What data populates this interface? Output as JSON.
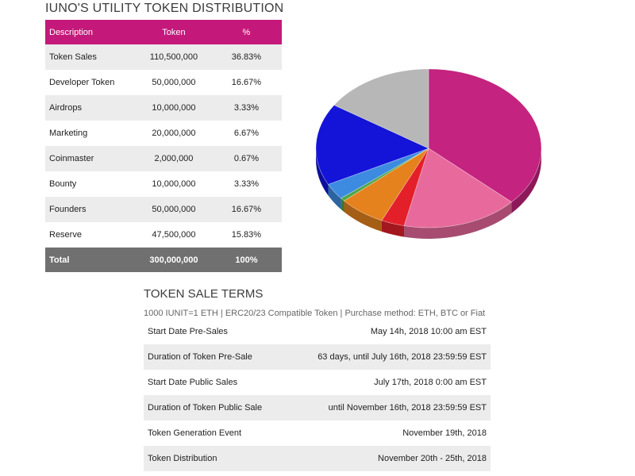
{
  "distribution": {
    "title": "IUNO'S UTILITY TOKEN DISTRIBUTION",
    "headers": [
      "Description",
      "Token",
      "%"
    ],
    "rows": [
      [
        "Token Sales",
        "110,500,000",
        "36.83%"
      ],
      [
        "Developer Token",
        "50,000,000",
        "16.67%"
      ],
      [
        "Airdrops",
        "10,000,000",
        "3.33%"
      ],
      [
        "Marketing",
        "20,000,000",
        "6.67%"
      ],
      [
        "Coinmaster",
        "2,000,000",
        "0.67%"
      ],
      [
        "Bounty",
        "10,000,000",
        "3.33%"
      ],
      [
        "Founders",
        "50,000,000",
        "16.67%"
      ],
      [
        "Reserve",
        "47,500,000",
        "15.83%"
      ]
    ],
    "total": [
      "Total",
      "300,000,000",
      "100%"
    ]
  },
  "chart_data": {
    "type": "pie",
    "title": "",
    "categories": [
      "Token Sales",
      "Developer Token",
      "Airdrops",
      "Marketing",
      "Coinmaster",
      "Bounty",
      "Founders",
      "Reserve"
    ],
    "values": [
      36.83,
      16.67,
      3.33,
      6.67,
      0.67,
      3.33,
      16.67,
      15.83
    ],
    "colors": [
      "#c4237f",
      "#e86a9c",
      "#e3202a",
      "#e5821d",
      "#4fa64a",
      "#3d8be0",
      "#1414d8",
      "#b7b7b7"
    ],
    "style": "3d-tilted"
  },
  "terms": {
    "title": "TOKEN SALE TERMS",
    "subline": "1000 IUNIT=1 ETH  |  ERC20/23 Compatible Token  |  Purchase method: ETH, BTC or Fiat",
    "rows": [
      [
        "Start Date Pre-Sales",
        "May 14h, 2018 10:00 am EST"
      ],
      [
        "Duration of Token Pre-Sale",
        "63 days, until July 16th, 2018 23:59:59 EST"
      ],
      [
        "Start Date Public Sales",
        "July 17th, 2018 0:00 am EST"
      ],
      [
        "Duration of Token Public Sale",
        "until November 16th, 2018 23:59:59 EST"
      ],
      [
        "Token Generation Event",
        "November 19th, 2018"
      ],
      [
        "Token Distribution",
        "November 20th - 25th, 2018"
      ]
    ]
  }
}
